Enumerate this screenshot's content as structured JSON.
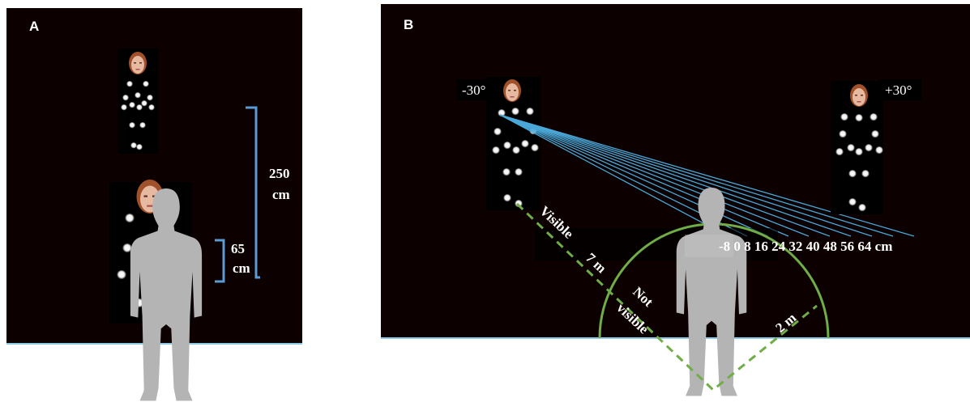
{
  "panel_a": {
    "label": "A",
    "distance_long": {
      "value": "250",
      "unit": "cm"
    },
    "distance_short": {
      "value": "65",
      "unit": "cm"
    }
  },
  "panel_b": {
    "label": "B",
    "left_angle": "-30°",
    "right_angle": "+30°",
    "visible": "Visible",
    "distance_far": "7 m",
    "not_visible": [
      "Not",
      "visible"
    ],
    "distance_near": "2 m",
    "offsets": "-8 0 8 16 24 32 40 48 56 64  cm"
  }
}
